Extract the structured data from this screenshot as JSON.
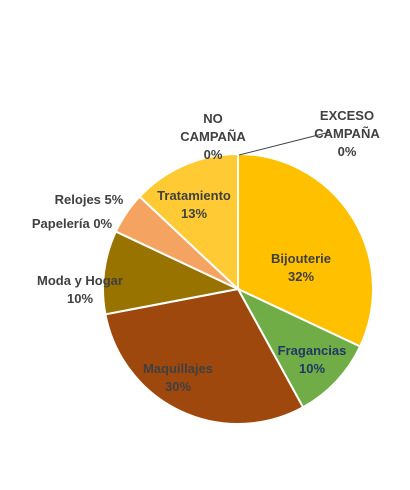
{
  "chart_data": {
    "type": "pie",
    "title": "",
    "slices": [
      {
        "label": "Bijouterie",
        "value": 32,
        "pct_label": "32%",
        "color": "#FFC000",
        "label_color": "#404040"
      },
      {
        "label": "Fragancias",
        "value": 10,
        "pct_label": "10%",
        "color": "#70AD47",
        "label_color": "#1F3864"
      },
      {
        "label": "Maquillajes",
        "value": 30,
        "pct_label": "30%",
        "color": "#9E480E",
        "label_color": "#404040"
      },
      {
        "label": "Moda y Hogar",
        "value": 10,
        "pct_label": "10%",
        "color": "#997300",
        "label_color": "#404040"
      },
      {
        "label": "Papelería",
        "value": 0,
        "pct_label": "0%",
        "color": "#4472C4",
        "label_color": "#404040"
      },
      {
        "label": "Relojes",
        "value": 5,
        "pct_label": "5%",
        "color": "#F4A460",
        "label_color": "#404040"
      },
      {
        "label": "Tratamiento",
        "value": 13,
        "pct_label": "13%",
        "color": "#FFCA33",
        "label_color": "#404040"
      },
      {
        "label": "NO CAMPAÑA",
        "value": 0,
        "pct_label": "0%",
        "color": "#5B9BD5",
        "label_color": "#404040"
      },
      {
        "label": "EXCESO CAMPAÑA",
        "value": 0,
        "pct_label": "0%",
        "color": "#A5A5A5",
        "label_color": "#404040"
      }
    ]
  }
}
